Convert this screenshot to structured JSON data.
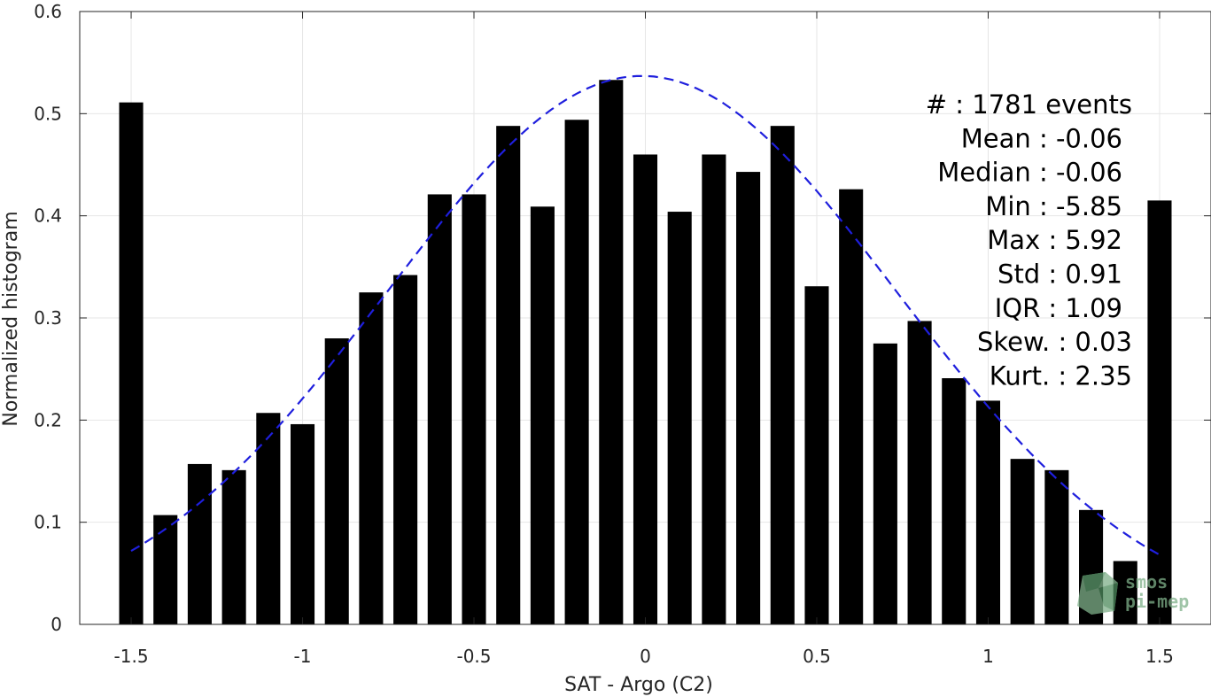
{
  "chart_data": {
    "type": "bar",
    "xlabel": "SAT - Argo (C2)",
    "ylabel": "Normalized histogram",
    "xlim": [
      -1.65,
      1.65
    ],
    "ylim": [
      0,
      0.6
    ],
    "grid": true,
    "x_ticks": [
      -1.5,
      -1,
      -0.5,
      0,
      0.5,
      1,
      1.5
    ],
    "x_tick_labels": [
      "-1.5",
      "-1",
      "-0.5",
      "0",
      "0.5",
      "1",
      "1.5"
    ],
    "y_ticks": [
      0,
      0.1,
      0.2,
      0.3,
      0.4,
      0.5,
      0.6
    ],
    "y_tick_labels": [
      "0",
      "0.1",
      "0.2",
      "0.3",
      "0.4",
      "0.5",
      "0.6"
    ],
    "bar_width": 0.07,
    "bars": {
      "x": [
        -1.5,
        -1.4,
        -1.3,
        -1.2,
        -1.1,
        -1.0,
        -0.9,
        -0.8,
        -0.7,
        -0.6,
        -0.5,
        -0.4,
        -0.3,
        -0.2,
        -0.1,
        0.0,
        0.1,
        0.2,
        0.3,
        0.4,
        0.5,
        0.6,
        0.7,
        0.8,
        0.9,
        1.0,
        1.1,
        1.2,
        1.3,
        1.4,
        1.5
      ],
      "values": [
        0.511,
        0.107,
        0.157,
        0.151,
        0.207,
        0.196,
        0.28,
        0.325,
        0.342,
        0.421,
        0.421,
        0.488,
        0.409,
        0.494,
        0.533,
        0.46,
        0.404,
        0.46,
        0.443,
        0.488,
        0.331,
        0.426,
        0.275,
        0.297,
        0.241,
        0.219,
        0.162,
        0.151,
        0.112,
        0.062,
        0.415
      ],
      "color": "#000000"
    },
    "fit_curve": {
      "style": "dashed",
      "color": "#1f1fdd",
      "distribution": "normal",
      "mean": -0.01,
      "std": 0.743,
      "x_range": [
        -1.5,
        1.5
      ]
    },
    "stats": [
      {
        "label": "#  ",
        "value": ": 1781 events"
      },
      {
        "label": "Mean ",
        "value": ": -0.06"
      },
      {
        "label": "Median ",
        "value": ": -0.06"
      },
      {
        "label": "Min ",
        "value": ": -5.85"
      },
      {
        "label": "Max ",
        "value": ": 5.92"
      },
      {
        "label": "Std ",
        "value": ": 0.91"
      },
      {
        "label": "IQR ",
        "value": ": 1.09"
      },
      {
        "label": "Skew. ",
        "value": ": 0.03"
      },
      {
        "label": "Kurt. ",
        "value": ": 2.35"
      }
    ]
  },
  "watermark": {
    "line1": "smos",
    "line2": "pi-mep",
    "color": "#7fb08a"
  }
}
